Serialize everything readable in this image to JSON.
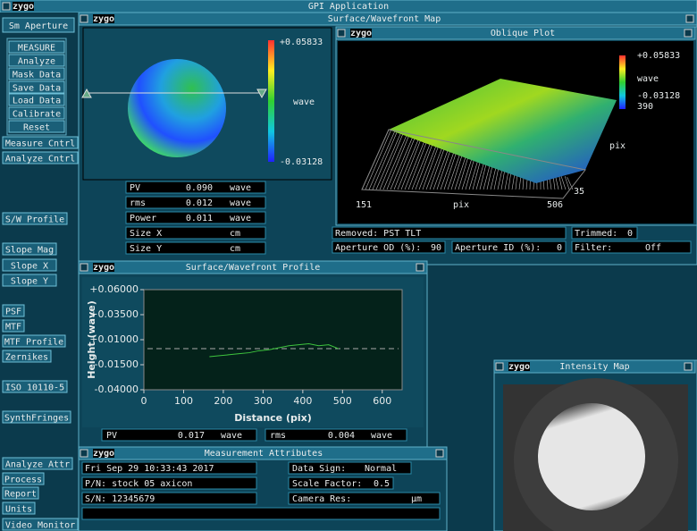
{
  "title": "GPI Application",
  "logo": "zygo",
  "sidebar": [
    "Sm Aperture",
    "MEASURE",
    "Analyze",
    "Mask Data",
    "Save Data",
    "Load Data",
    "Calibrate",
    "Reset",
    "Measure Cntrl",
    "Analyze Cntrl",
    "S/W Profile",
    "Slope Mag",
    "Slope X",
    "Slope Y",
    "PSF",
    "MTF",
    "MTF Profile",
    "Zernikes",
    "ISO 10110-5",
    "SynthFringes",
    "Analyze Attr",
    "Process",
    "Report",
    "Units",
    "Video Monitor"
  ],
  "map": {
    "title": "Surface/Wavefront Map",
    "scale_max": "+0.05833",
    "scale_unit": "wave",
    "scale_min": "-0.03128",
    "results": [
      {
        "label": "PV",
        "value": "0.090",
        "unit": "wave"
      },
      {
        "label": "rms",
        "value": "0.012",
        "unit": "wave"
      },
      {
        "label": "Power",
        "value": "0.011",
        "unit": "wave"
      },
      {
        "label": "Size X",
        "unit": "cm"
      },
      {
        "label": "Size Y",
        "unit": "cm"
      }
    ]
  },
  "oblique": {
    "title": "Oblique Plot",
    "scale_max": "+0.05833",
    "scale_unit": "wave",
    "scale_min": "-0.03128",
    "y_max": "390",
    "y_label": "pix",
    "y_min": "35",
    "x_min": "151",
    "x_label": "pix",
    "x_max": "506"
  },
  "status": {
    "removed": "Removed: PST TLT",
    "trimmed_label": "Trimmed:",
    "trimmed": "0",
    "od_label": "Aperture OD (%):",
    "od": "90",
    "id_label": "Aperture ID (%):",
    "id": "0",
    "filter_label": "Filter:",
    "filter": "Off"
  },
  "profile": {
    "title": "Surface/Wavefront Profile",
    "plot": {
      "type": "line",
      "xlabel": "Distance (pix)",
      "ylabel": "Height (wave)",
      "color": "#3ec43e",
      "x": [
        165,
        190,
        215,
        240,
        265,
        290,
        315,
        340,
        365,
        390,
        415,
        440,
        465,
        490
      ],
      "values": [
        -0.007,
        -0.006,
        -0.005,
        -0.004,
        -0.003,
        -0.001,
        0.0,
        0.002,
        0.004,
        0.005,
        0.006,
        0.004,
        0.005,
        0.001
      ],
      "xlim": [
        0,
        650
      ],
      "xticks": [
        0,
        100,
        200,
        300,
        400,
        500,
        600
      ],
      "ylim": [
        -0.04,
        0.06
      ],
      "yticks": [
        {
          "value": -0.04,
          "label": "-0.04000"
        },
        {
          "value": -0.015,
          "label": "-0.01500"
        },
        {
          "value": 0.01,
          "label": "+0.01000"
        },
        {
          "value": 0.035,
          "label": "+0.03500"
        },
        {
          "value": 0.06,
          "label": "+0.06000"
        }
      ]
    },
    "results": [
      {
        "label": "PV",
        "value": "0.017",
        "unit": "wave"
      },
      {
        "label": "rms",
        "value": "0.004",
        "unit": "wave"
      }
    ]
  },
  "attributes": {
    "title": "Measurement Attributes",
    "date": "Fri Sep 29 10:33:43 2017",
    "pn": "P/N:  stock 05 axicon",
    "sn": "S/N:  12345679",
    "data_sign_label": "Data Sign:",
    "data_sign": "Normal",
    "scale_label": "Scale Factor:",
    "scale": "0.5",
    "camera_label": "Camera Res:",
    "camera_unit": "µm"
  },
  "intensity": {
    "title": "Intensity Map"
  }
}
